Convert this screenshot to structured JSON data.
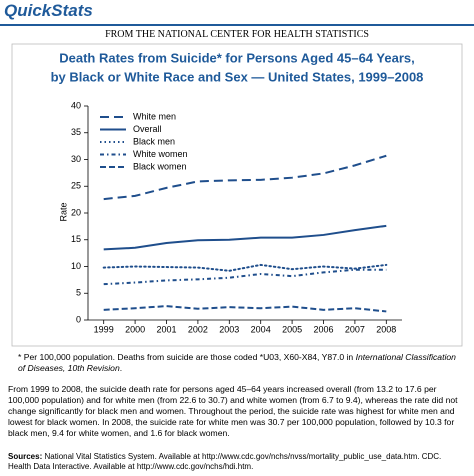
{
  "header": {
    "brand": "QuickStats",
    "source_line": "FROM THE NATIONAL CENTER FOR HEALTH STATISTICS"
  },
  "chart_data": {
    "type": "line",
    "title": [
      "Death Rates from Suicide* for Persons Aged 45–64 Years,",
      "by Black or White Race and Sex — United States, 1999–2008"
    ],
    "y_label": "Rate",
    "categories": [
      "1999",
      "2000",
      "2001",
      "2002",
      "2003",
      "2004",
      "2005",
      "2006",
      "2007",
      "2008"
    ],
    "ylim": [
      0,
      40
    ],
    "yticks": [
      0,
      5,
      10,
      15,
      20,
      25,
      30,
      35,
      40
    ],
    "series": [
      {
        "name": "White men",
        "color": "#1f4e8c",
        "dash": "9,5",
        "values": [
          22.6,
          23.2,
          24.7,
          25.9,
          26.1,
          26.2,
          26.6,
          27.4,
          28.9,
          30.7
        ]
      },
      {
        "name": "Overall",
        "color": "#1f4e8c",
        "dash": "none",
        "values": [
          13.2,
          13.5,
          14.4,
          14.9,
          15.0,
          15.4,
          15.4,
          15.9,
          16.8,
          17.6
        ]
      },
      {
        "name": "Black men",
        "color": "#1f4e8c",
        "dash": "1.5,3",
        "values": [
          9.8,
          10.0,
          9.9,
          9.8,
          9.2,
          10.3,
          9.5,
          10.0,
          9.6,
          10.3
        ]
      },
      {
        "name": "White women",
        "color": "#1f4e8c",
        "dash": "4,3,1.5,3",
        "values": [
          6.7,
          7.0,
          7.4,
          7.6,
          7.9,
          8.6,
          8.2,
          8.9,
          9.4,
          9.4
        ]
      },
      {
        "name": "Black women",
        "color": "#1f4e8c",
        "dash": "6,3",
        "values": [
          1.9,
          2.2,
          2.6,
          2.1,
          2.4,
          2.2,
          2.5,
          1.9,
          2.2,
          1.6
        ]
      }
    ]
  },
  "footnote": {
    "text": "* Per 100,000 population. Deaths from suicide are those coded *U03, X60-X84, Y87.0 in ",
    "italic": "International Classification of Diseases, 10th Revision",
    "end": "."
  },
  "summary": "From 1999 to 2008, the suicide death rate for persons aged 45–64 years increased overall (from 13.2 to 17.6 per 100,000 population) and for white men (from 22.6 to 30.7) and white women (from 6.7 to 9.4), whereas the rate did not change significantly for black men and women. Throughout the period, the suicide rate was highest for white men and lowest for black women. In 2008, the suicide rate for white men was 30.7 per 100,000 population, followed by 10.3 for black men, 9.4 for white women, and 1.6 for black women.",
  "sources": {
    "label": "Sources:",
    "text": "National Vital Statistics System. Available at http://www.cdc.gov/nchs/nvss/mortality_public_use_data.htm. CDC. Health Data Interactive. Available at http://www.cdc.gov/nchs/hdi.htm."
  }
}
